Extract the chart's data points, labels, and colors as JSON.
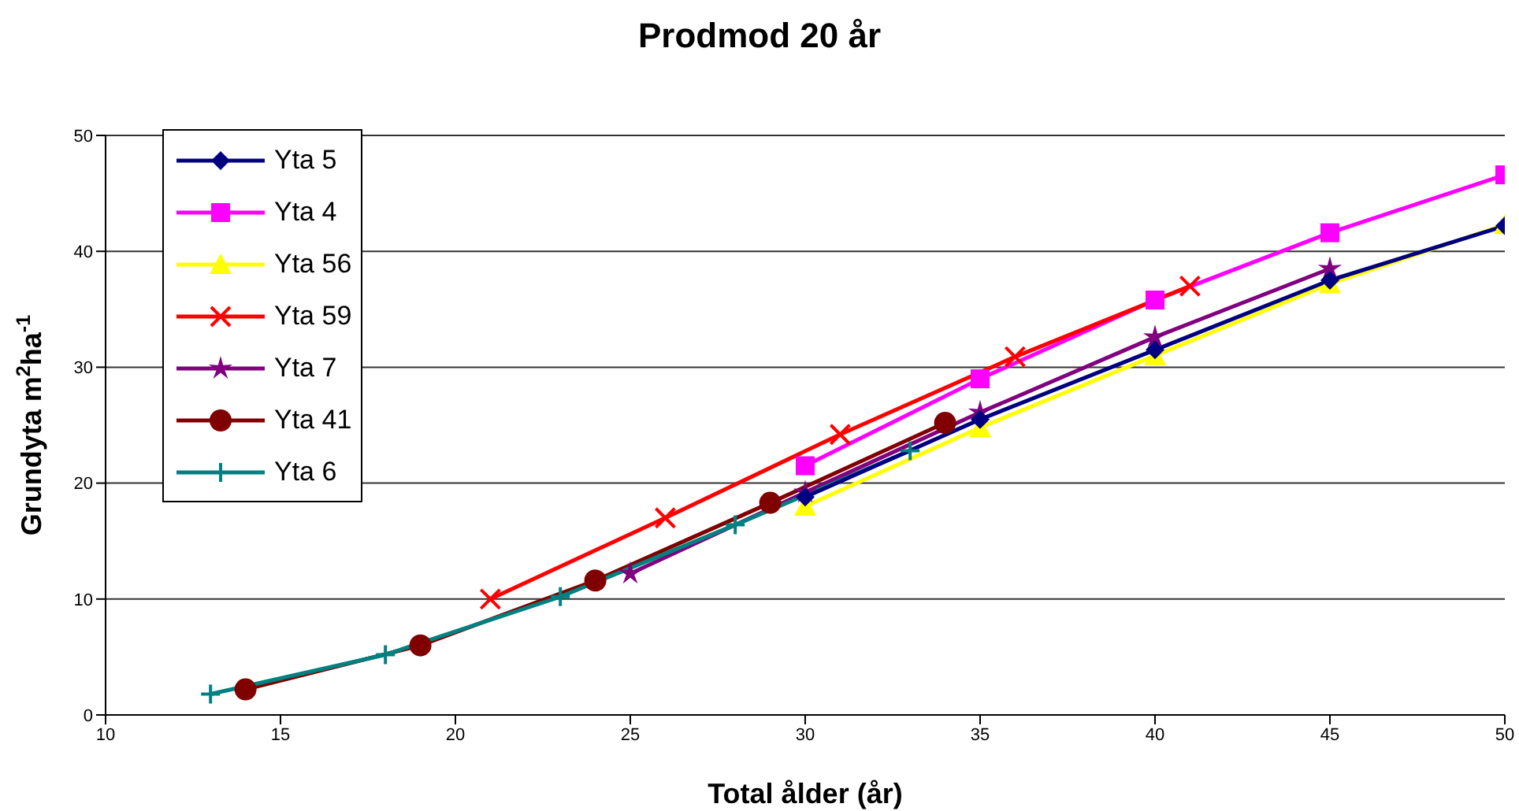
{
  "chart_data": {
    "type": "line",
    "title": "Prodmod 20 år",
    "xlabel": "Total ålder (år)",
    "ylabel": "Grundyta m$^{2}$ha$^{-1}$",
    "xlim": [
      10,
      50
    ],
    "xticks": [
      10,
      15,
      20,
      25,
      30,
      35,
      40,
      45,
      50
    ],
    "ylim": [
      0,
      50
    ],
    "yticks": [
      0,
      10,
      20,
      30,
      40,
      50
    ],
    "grid": "y",
    "legend": "top left",
    "series": [
      {
        "name": "Yta 5",
        "color": "#000080",
        "marker": "diamond",
        "x": [
          30,
          35,
          40,
          45,
          50
        ],
        "values": [
          18.8,
          25.5,
          31.5,
          37.5,
          42.2
        ]
      },
      {
        "name": "Yta 4",
        "color": "#ff00ff",
        "marker": "square",
        "x": [
          30,
          35,
          40,
          45,
          50
        ],
        "values": [
          21.5,
          29,
          35.8,
          41.6,
          46.6
        ]
      },
      {
        "name": "Yta 56",
        "color": "#ffff00",
        "marker": "triangle",
        "x": [
          30,
          35,
          40,
          45,
          50
        ],
        "values": [
          18,
          24.8,
          31,
          37.2,
          42.3
        ]
      },
      {
        "name": "Yta 59",
        "color": "#ff0000",
        "marker": "cross",
        "x": [
          21,
          26,
          31,
          36,
          41
        ],
        "values": [
          10,
          17,
          24.2,
          30.9,
          37
        ]
      },
      {
        "name": "Yta 7",
        "color": "#800080",
        "marker": "star",
        "x": [
          25,
          30,
          35,
          40,
          45
        ],
        "values": [
          12.2,
          19.2,
          26.1,
          32.6,
          38.5
        ]
      },
      {
        "name": "Yta 41",
        "color": "#800000",
        "marker": "circle",
        "x": [
          14,
          19,
          24,
          29,
          34
        ],
        "values": [
          2.2,
          6,
          11.6,
          18.3,
          25.2
        ]
      },
      {
        "name": "Yta 6",
        "color": "#008080",
        "marker": "plus",
        "x": [
          13,
          18,
          23,
          28,
          33
        ],
        "values": [
          1.8,
          5.2,
          10.2,
          16.4,
          22.8
        ]
      }
    ]
  }
}
